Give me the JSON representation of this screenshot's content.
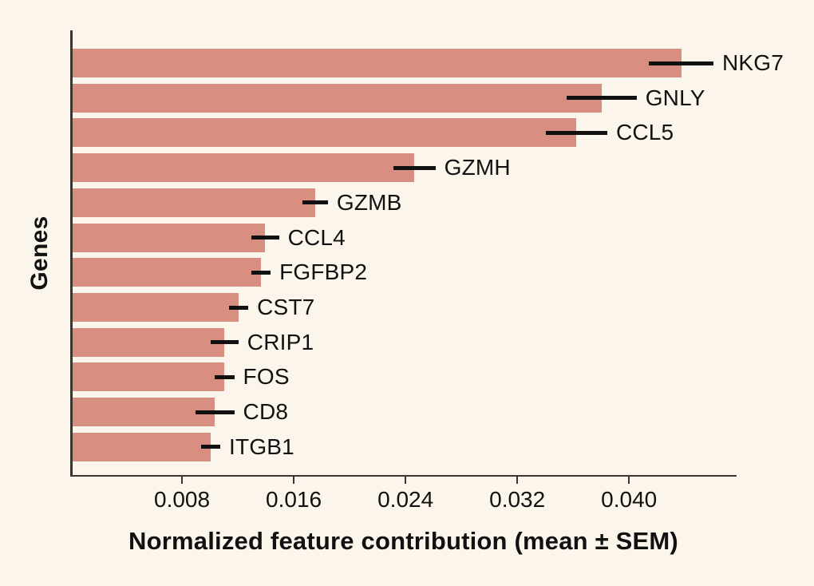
{
  "colors": {
    "background": "#fbf5ec",
    "bar": "#d98e82",
    "axis": "#3a352e",
    "error_bar": "#111111",
    "text": "#111111"
  },
  "chart_data": {
    "type": "bar",
    "orientation": "horizontal",
    "title": "",
    "xlabel": "Normalized feature contribution (mean ± SEM)",
    "ylabel": "Genes",
    "categories": [
      "NKG7",
      "GNLY",
      "CCL5",
      "GZMH",
      "GZMB",
      "CCL4",
      "FGFBP2",
      "CST7",
      "CRIP1",
      "FOS",
      "CD8",
      "ITGB1"
    ],
    "series": [
      {
        "name": "Normalized feature contribution (mean)",
        "values": [
          0.0436,
          0.0379,
          0.0361,
          0.0245,
          0.0174,
          0.0138,
          0.0135,
          0.0119,
          0.0109,
          0.0109,
          0.0102,
          0.0099
        ]
      },
      {
        "name": "SEM",
        "values": [
          0.0023,
          0.0025,
          0.0022,
          0.0015,
          0.0009,
          0.001,
          0.0007,
          0.0007,
          0.001,
          0.0007,
          0.0014,
          0.0007
        ]
      }
    ],
    "xticks": [
      0.008,
      0.016,
      0.024,
      0.032,
      0.04
    ],
    "xtick_labels": [
      "0.008",
      "0.016",
      "0.024",
      "0.032",
      "0.040"
    ],
    "xlim": [
      0,
      0.0477
    ],
    "grid": false,
    "legend": null,
    "error_bars": true,
    "bar_labels_position": "right-of-error-bar"
  }
}
